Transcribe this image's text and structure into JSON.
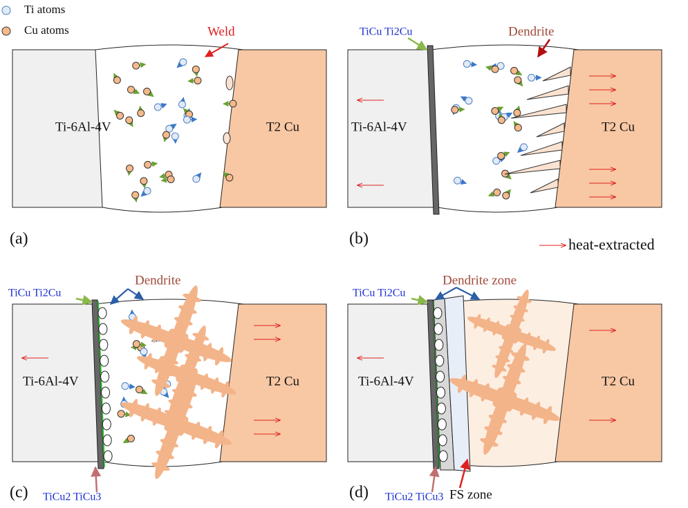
{
  "legend": {
    "ti": "Ti atoms",
    "cu": "Cu atoms",
    "heat": "heat-extracted"
  },
  "panels": [
    {
      "label": "(a)",
      "left": "Ti-6Al-4V",
      "right": "T2 Cu",
      "weld": "Weld"
    },
    {
      "label": "(b)",
      "left": "Ti-6Al-4V",
      "right": "T2 Cu",
      "interface": "TiCu Ti2Cu",
      "dendrite": "Dendrite"
    },
    {
      "label": "(c)",
      "left": "Ti-6Al-4V",
      "right": "T2 Cu",
      "interface": "TiCu Ti2Cu",
      "dendrite": "Dendrite",
      "interface2": "TiCu2 TiCu3"
    },
    {
      "label": "(d)",
      "left": "Ti-6Al-4V",
      "right": "T2 Cu",
      "interface": "TiCu Ti2Cu",
      "dendrite": "Dendrite zone",
      "interface2": "TiCu2 TiCu3",
      "fs": "FS zone"
    }
  ]
}
